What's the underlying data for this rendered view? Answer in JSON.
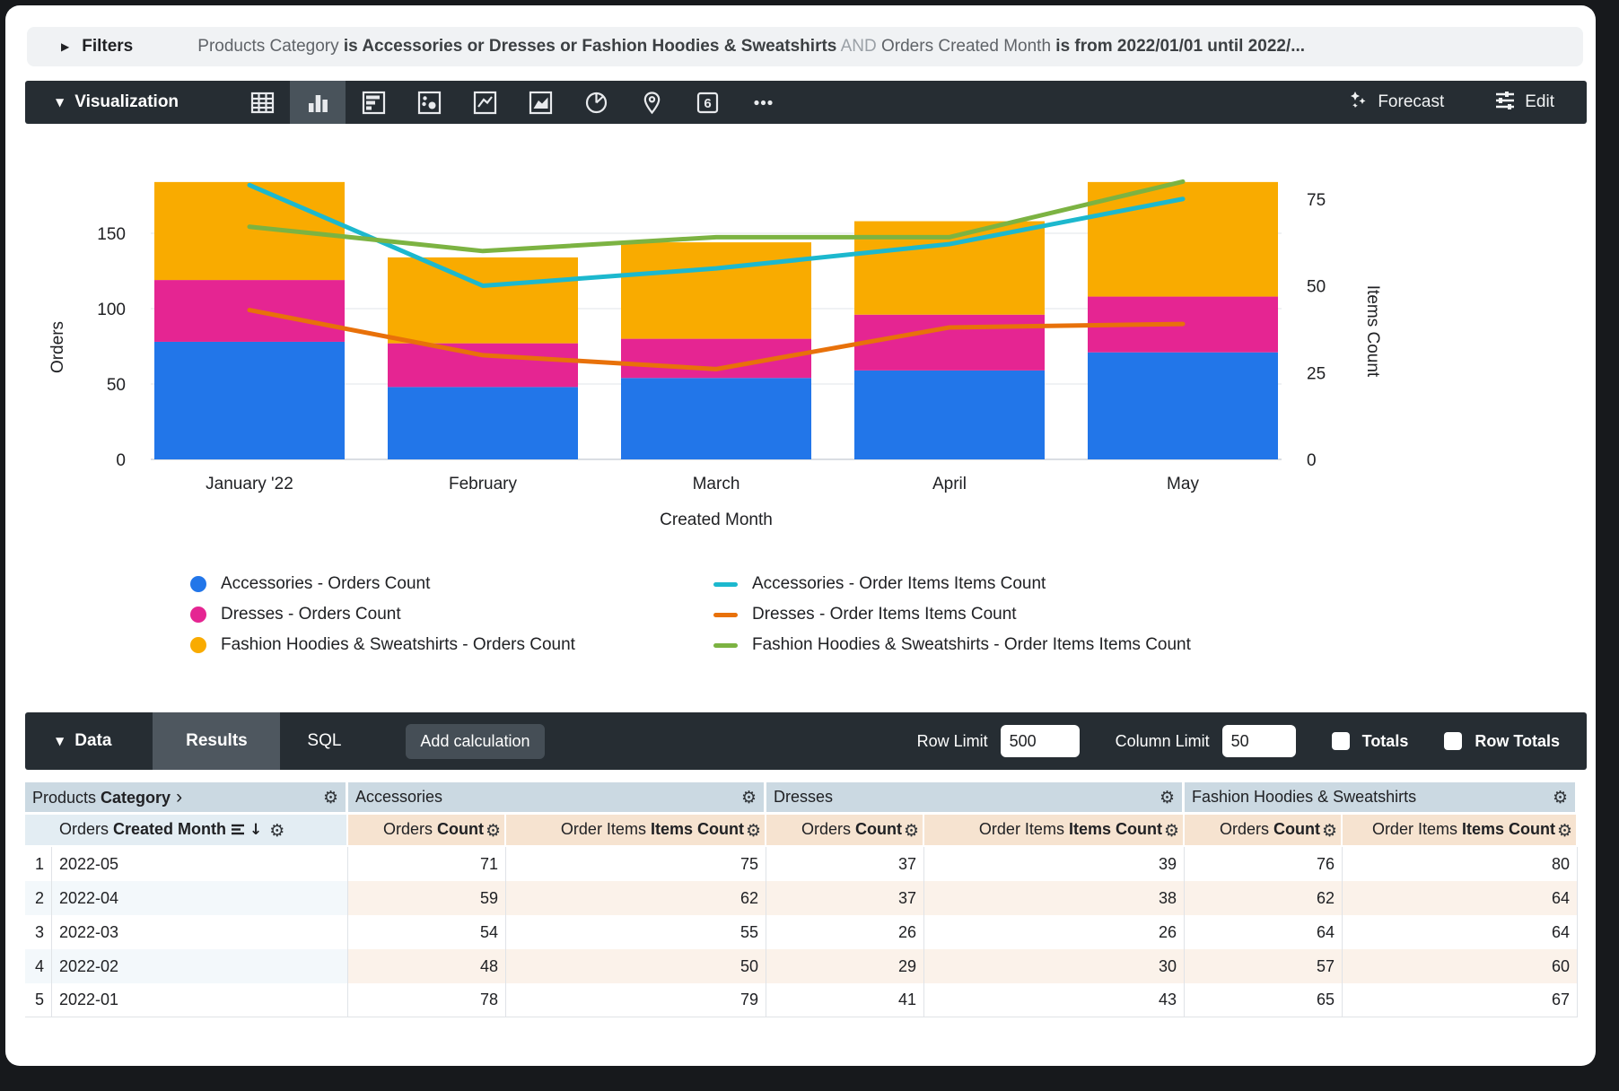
{
  "filters": {
    "label": "Filters",
    "segments": [
      {
        "text": "Products Category",
        "style": "plain"
      },
      {
        "text": "is Accessories or Dresses or Fashion Hoodies & Sweatshirts",
        "style": "bold"
      },
      {
        "text": "AND",
        "style": "muted"
      },
      {
        "text": "Orders Created Month",
        "style": "plain"
      },
      {
        "text": "is from 2022/01/01 until 2022/...",
        "style": "bold"
      }
    ]
  },
  "viz_toolbar": {
    "label": "Visualization",
    "icons": [
      {
        "name": "table",
        "selected": false
      },
      {
        "name": "column",
        "selected": true
      },
      {
        "name": "bar",
        "selected": false
      },
      {
        "name": "scatter",
        "selected": false
      },
      {
        "name": "line",
        "selected": false
      },
      {
        "name": "area",
        "selected": false
      },
      {
        "name": "pie",
        "selected": false
      },
      {
        "name": "map",
        "selected": false
      },
      {
        "name": "single-value",
        "selected": false
      },
      {
        "name": "more",
        "selected": false
      }
    ],
    "single_value_glyph": "6",
    "forecast_label": "Forecast",
    "edit_label": "Edit"
  },
  "chart_data": {
    "type": "combo: stacked bar + line (dual axis)",
    "x": [
      "January '22",
      "February",
      "March",
      "April",
      "May"
    ],
    "xlabel": "Created Month",
    "left_axis": {
      "label": "Orders",
      "ticks": [
        0,
        50,
        100,
        150
      ],
      "max": 200
    },
    "right_axis": {
      "label": "Items Count",
      "ticks": [
        0,
        25,
        50,
        75
      ],
      "max": 92
    },
    "bar_series": [
      {
        "name": "Accessories - Orders Count",
        "color": "#2276E9",
        "values": [
          78,
          48,
          54,
          59,
          71
        ]
      },
      {
        "name": "Dresses - Orders Count",
        "color": "#E52592",
        "values": [
          41,
          29,
          26,
          37,
          37
        ]
      },
      {
        "name": "Fashion Hoodies & Sweatshirts - Orders Count",
        "color": "#F9AB00",
        "values": [
          65,
          57,
          64,
          62,
          76
        ]
      }
    ],
    "line_series": [
      {
        "name": "Accessories - Order Items Items Count",
        "color": "#1CB8CE",
        "values": [
          79,
          50,
          55,
          62,
          75
        ]
      },
      {
        "name": "Dresses - Order Items Items Count",
        "color": "#E8710A",
        "values": [
          43,
          30,
          26,
          38,
          39
        ]
      },
      {
        "name": "Fashion Hoodies & Sweatshirts - Order Items Items Count",
        "color": "#7CB342",
        "values": [
          67,
          60,
          64,
          64,
          80
        ]
      }
    ],
    "legend_position": "bottom, two columns"
  },
  "data_bar": {
    "label": "Data",
    "tabs": [
      {
        "label": "Results",
        "active": true
      },
      {
        "label": "SQL",
        "active": false
      }
    ],
    "add_calculation_label": "Add calculation",
    "row_limit_label": "Row Limit",
    "row_limit_value": "500",
    "column_limit_label": "Column Limit",
    "column_limit_value": "50",
    "totals_label": "Totals",
    "totals_checked": false,
    "row_totals_label": "Row Totals",
    "row_totals_checked": false
  },
  "table": {
    "group_headers": [
      {
        "plain": "Products ",
        "bold": "Category",
        "chevron": "›",
        "span": 2
      },
      {
        "plain": "Accessories",
        "bold": "",
        "chevron": "",
        "span": 2
      },
      {
        "plain": "Dresses",
        "bold": "",
        "chevron": "",
        "span": 2
      },
      {
        "plain": "Fashion Hoodies & Sweatshirts",
        "bold": "",
        "chevron": "",
        "span": 2
      }
    ],
    "sub_headers": [
      {
        "plain": "Orders ",
        "bold": "Created Month",
        "type": "dimension",
        "sorted_desc": true
      },
      {
        "plain": "Orders ",
        "bold": "Count",
        "type": "measure"
      },
      {
        "plain": "Order Items ",
        "bold": "Items Count",
        "type": "measure"
      },
      {
        "plain": "Orders ",
        "bold": "Count",
        "type": "measure"
      },
      {
        "plain": "Order Items ",
        "bold": "Items Count",
        "type": "measure"
      },
      {
        "plain": "Orders ",
        "bold": "Count",
        "type": "measure"
      },
      {
        "plain": "Order Items ",
        "bold": "Items Count",
        "type": "measure"
      }
    ],
    "rows": [
      {
        "num": "1",
        "month": "2022-05",
        "values": [
          "71",
          "75",
          "37",
          "39",
          "76",
          "80"
        ]
      },
      {
        "num": "2",
        "month": "2022-04",
        "values": [
          "59",
          "62",
          "37",
          "38",
          "62",
          "64"
        ]
      },
      {
        "num": "3",
        "month": "2022-03",
        "values": [
          "54",
          "55",
          "26",
          "26",
          "64",
          "64"
        ]
      },
      {
        "num": "4",
        "month": "2022-02",
        "values": [
          "48",
          "50",
          "29",
          "30",
          "57",
          "60"
        ]
      },
      {
        "num": "5",
        "month": "2022-01",
        "values": [
          "78",
          "79",
          "41",
          "43",
          "65",
          "67"
        ]
      }
    ]
  },
  "colors": {
    "toolbar_bg": "#262D33",
    "selected_tile": "#49535B",
    "filter_bar_bg": "#F0F2F4",
    "group_header_bg": "#CBD9E2",
    "dimension_header_bg": "#E3EDF3",
    "measure_header_bg": "#F6E3D0",
    "alt_row_dim": "#F3F8FB",
    "alt_row_meas": "#FBF2EA"
  }
}
